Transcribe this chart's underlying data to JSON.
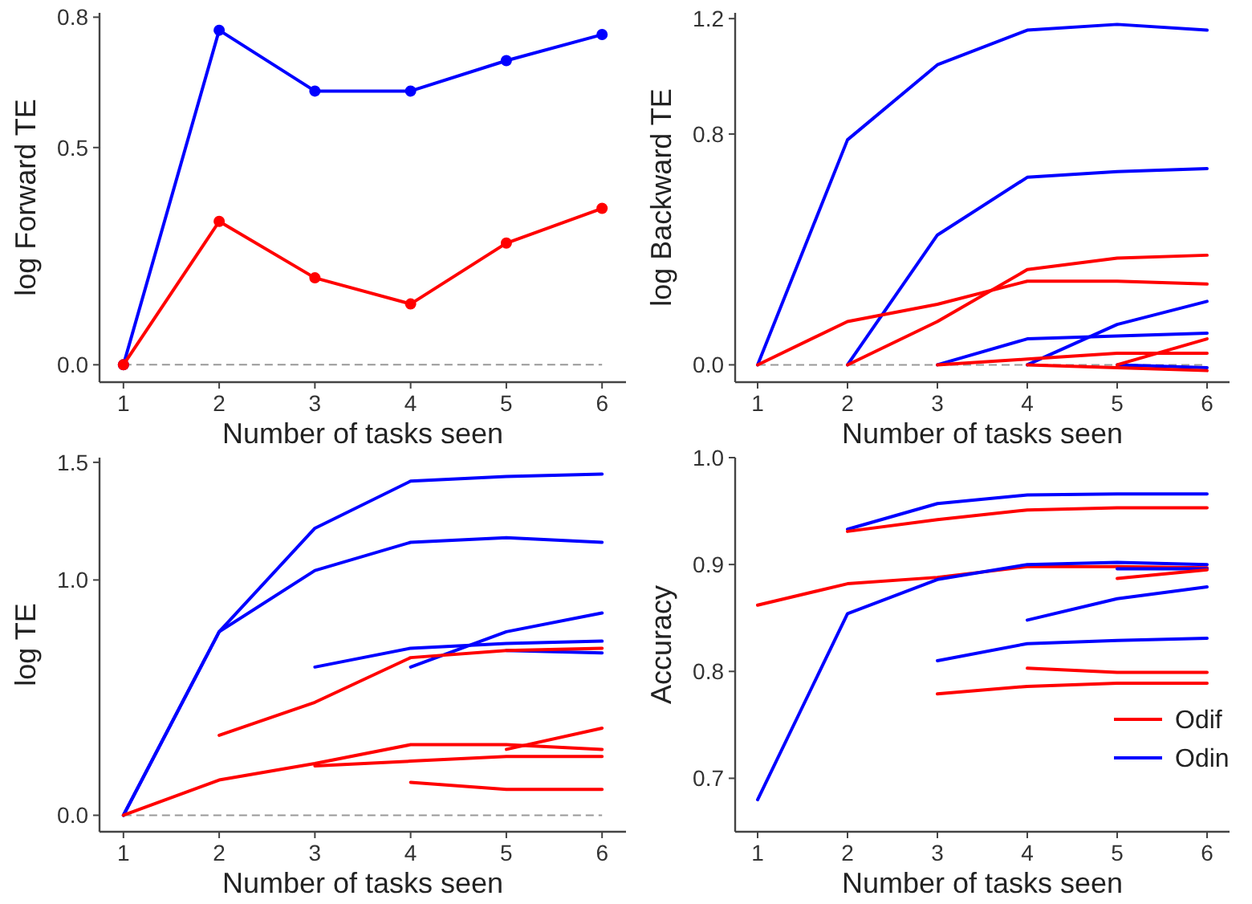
{
  "chart_data": [
    {
      "type": "line",
      "xlabel": "Number of tasks seen",
      "ylabel": "log Forward TE",
      "xlim": [
        0.75,
        6.25
      ],
      "xticks": [
        1,
        2,
        3,
        4,
        5,
        6
      ],
      "ylim": [
        -0.04,
        0.81
      ],
      "yticks": [
        {
          "value": 0,
          "label": "0.0"
        },
        {
          "value": 0.5,
          "label": "0.5"
        },
        {
          "value": 0.8,
          "label": "0.8"
        }
      ],
      "marker": "circle",
      "legend": false,
      "grid": false,
      "ref_lines": [
        {
          "axis": "y",
          "value": 0,
          "color": "#999999",
          "line_style": "dashed"
        }
      ],
      "series": [
        {
          "color": "#0000ff",
          "x": [
            1,
            2,
            3,
            4,
            5,
            6
          ],
          "values": [
            0,
            0.77,
            0.63,
            0.63,
            0.7,
            0.76
          ]
        },
        {
          "color": "#ff0000",
          "x": [
            1,
            2,
            3,
            4,
            5,
            6
          ],
          "values": [
            0,
            0.33,
            0.2,
            0.14,
            0.28,
            0.36
          ]
        }
      ]
    },
    {
      "type": "line",
      "xlabel": "Number of tasks seen",
      "ylabel": "log Backward TE",
      "xlim": [
        0.75,
        6.25
      ],
      "xticks": [
        1,
        2,
        3,
        4,
        5,
        6
      ],
      "ylim": [
        -0.06,
        1.22
      ],
      "yticks": [
        {
          "value": 0,
          "label": "0.0"
        },
        {
          "value": 0.8,
          "label": "0.8"
        },
        {
          "value": 1.2,
          "label": "1.2"
        }
      ],
      "legend": false,
      "grid": false,
      "ref_lines": [
        {
          "axis": "y",
          "value": 0,
          "color": "#999999",
          "line_style": "dashed"
        }
      ],
      "series": [
        {
          "color": "#0000ff",
          "x": [
            1,
            2,
            3,
            4,
            5,
            6
          ],
          "values": [
            0,
            0.78,
            1.04,
            1.16,
            1.18,
            1.16
          ]
        },
        {
          "color": "#0000ff",
          "x": [
            2,
            3,
            4,
            5,
            6
          ],
          "values": [
            0,
            0.45,
            0.65,
            0.67,
            0.68
          ]
        },
        {
          "color": "#0000ff",
          "x": [
            3,
            4,
            5,
            6
          ],
          "values": [
            0,
            0.09,
            0.1,
            0.11
          ]
        },
        {
          "color": "#0000ff",
          "x": [
            4,
            5,
            6
          ],
          "values": [
            0,
            0.14,
            0.22
          ]
        },
        {
          "color": "#0000ff",
          "x": [
            5,
            6
          ],
          "values": [
            0,
            -0.01
          ]
        },
        {
          "color": "#ff0000",
          "x": [
            1,
            2,
            3,
            4,
            5,
            6
          ],
          "values": [
            0,
            0.15,
            0.21,
            0.29,
            0.29,
            0.28
          ]
        },
        {
          "color": "#ff0000",
          "x": [
            2,
            3,
            4,
            5,
            6
          ],
          "values": [
            0,
            0.15,
            0.33,
            0.37,
            0.38
          ]
        },
        {
          "color": "#ff0000",
          "x": [
            3,
            4,
            5,
            6
          ],
          "values": [
            0,
            0.02,
            0.04,
            0.04
          ]
        },
        {
          "color": "#ff0000",
          "x": [
            4,
            5,
            6
          ],
          "values": [
            0,
            -0.01,
            -0.02
          ]
        },
        {
          "color": "#ff0000",
          "x": [
            5,
            6
          ],
          "values": [
            0,
            0.09
          ]
        }
      ]
    },
    {
      "type": "line",
      "xlabel": "Number of tasks seen",
      "ylabel": "log TE",
      "xlim": [
        0.75,
        6.25
      ],
      "xticks": [
        1,
        2,
        3,
        4,
        5,
        6
      ],
      "ylim": [
        -0.07,
        1.52
      ],
      "yticks": [
        {
          "value": 0,
          "label": "0.0"
        },
        {
          "value": 1,
          "label": "1.0"
        },
        {
          "value": 1.5,
          "label": "1.5"
        }
      ],
      "legend": false,
      "grid": false,
      "ref_lines": [
        {
          "axis": "y",
          "value": 0,
          "color": "#999999",
          "line_style": "dashed"
        }
      ],
      "series": [
        {
          "color": "#0000ff",
          "x": [
            1,
            2,
            3,
            4,
            5,
            6
          ],
          "values": [
            0,
            0.78,
            1.22,
            1.42,
            1.44,
            1.45
          ]
        },
        {
          "color": "#0000ff",
          "x": [
            1,
            2,
            3,
            4,
            5,
            6
          ],
          "values": [
            0,
            0.78,
            1.04,
            1.16,
            1.18,
            1.16
          ]
        },
        {
          "color": "#0000ff",
          "x": [
            3,
            4,
            5,
            6
          ],
          "values": [
            0.63,
            0.71,
            0.73,
            0.74
          ]
        },
        {
          "color": "#0000ff",
          "x": [
            4,
            5,
            6
          ],
          "values": [
            0.63,
            0.78,
            0.86
          ]
        },
        {
          "color": "#0000ff",
          "x": [
            5,
            6
          ],
          "values": [
            0.7,
            0.69
          ]
        },
        {
          "color": "#ff0000",
          "x": [
            2,
            3,
            4,
            5,
            6
          ],
          "values": [
            0.34,
            0.48,
            0.67,
            0.7,
            0.71
          ]
        },
        {
          "color": "#ff0000",
          "x": [
            1,
            2,
            3,
            4,
            5,
            6
          ],
          "values": [
            0,
            0.15,
            0.22,
            0.3,
            0.3,
            0.28
          ]
        },
        {
          "color": "#ff0000",
          "x": [
            3,
            4,
            5,
            6
          ],
          "values": [
            0.21,
            0.23,
            0.25,
            0.25
          ]
        },
        {
          "color": "#ff0000",
          "x": [
            4,
            5,
            6
          ],
          "values": [
            0.14,
            0.11,
            0.11
          ]
        },
        {
          "color": "#ff0000",
          "x": [
            5,
            6
          ],
          "values": [
            0.28,
            0.37
          ]
        }
      ]
    },
    {
      "type": "line",
      "xlabel": "Number of tasks seen",
      "ylabel": "Accuracy",
      "xlim": [
        0.75,
        6.25
      ],
      "xticks": [
        1,
        2,
        3,
        4,
        5,
        6
      ],
      "ylim": [
        0.65,
        1.0
      ],
      "yticks": [
        {
          "value": 0.7,
          "label": "0.7"
        },
        {
          "value": 0.8,
          "label": "0.8"
        },
        {
          "value": 0.9,
          "label": "0.9"
        },
        {
          "value": 1.0,
          "label": "1.0"
        }
      ],
      "legend": "bottom right",
      "grid": false,
      "series": [
        {
          "name": "Odif",
          "color": "#ff0000",
          "x": [
            1,
            2,
            3,
            4,
            5,
            6
          ],
          "values": [
            0.862,
            0.882,
            0.888,
            0.898,
            0.898,
            0.897
          ]
        },
        {
          "name": "Odin",
          "color": "#0000ff",
          "x": [
            1,
            2,
            3,
            4,
            5,
            6
          ],
          "values": [
            0.68,
            0.854,
            0.886,
            0.9,
            0.902,
            0.9
          ]
        },
        {
          "color": "#0000ff",
          "x": [
            2,
            3,
            4,
            5,
            6
          ],
          "values": [
            0.933,
            0.957,
            0.965,
            0.966,
            0.966
          ]
        },
        {
          "color": "#0000ff",
          "x": [
            3,
            4,
            5,
            6
          ],
          "values": [
            0.81,
            0.826,
            0.829,
            0.831
          ]
        },
        {
          "color": "#0000ff",
          "x": [
            4,
            5,
            6
          ],
          "values": [
            0.848,
            0.868,
            0.879
          ]
        },
        {
          "color": "#0000ff",
          "x": [
            5,
            6
          ],
          "values": [
            0.896,
            0.896
          ]
        },
        {
          "color": "#ff0000",
          "x": [
            2,
            3,
            4,
            5,
            6
          ],
          "values": [
            0.931,
            0.942,
            0.951,
            0.953,
            0.953
          ]
        },
        {
          "color": "#ff0000",
          "x": [
            3,
            4,
            5,
            6
          ],
          "values": [
            0.779,
            0.786,
            0.789,
            0.789
          ]
        },
        {
          "color": "#ff0000",
          "x": [
            4,
            5,
            6
          ],
          "values": [
            0.803,
            0.799,
            0.799
          ]
        },
        {
          "color": "#ff0000",
          "x": [
            5,
            6
          ],
          "values": [
            0.887,
            0.895
          ]
        }
      ]
    }
  ]
}
